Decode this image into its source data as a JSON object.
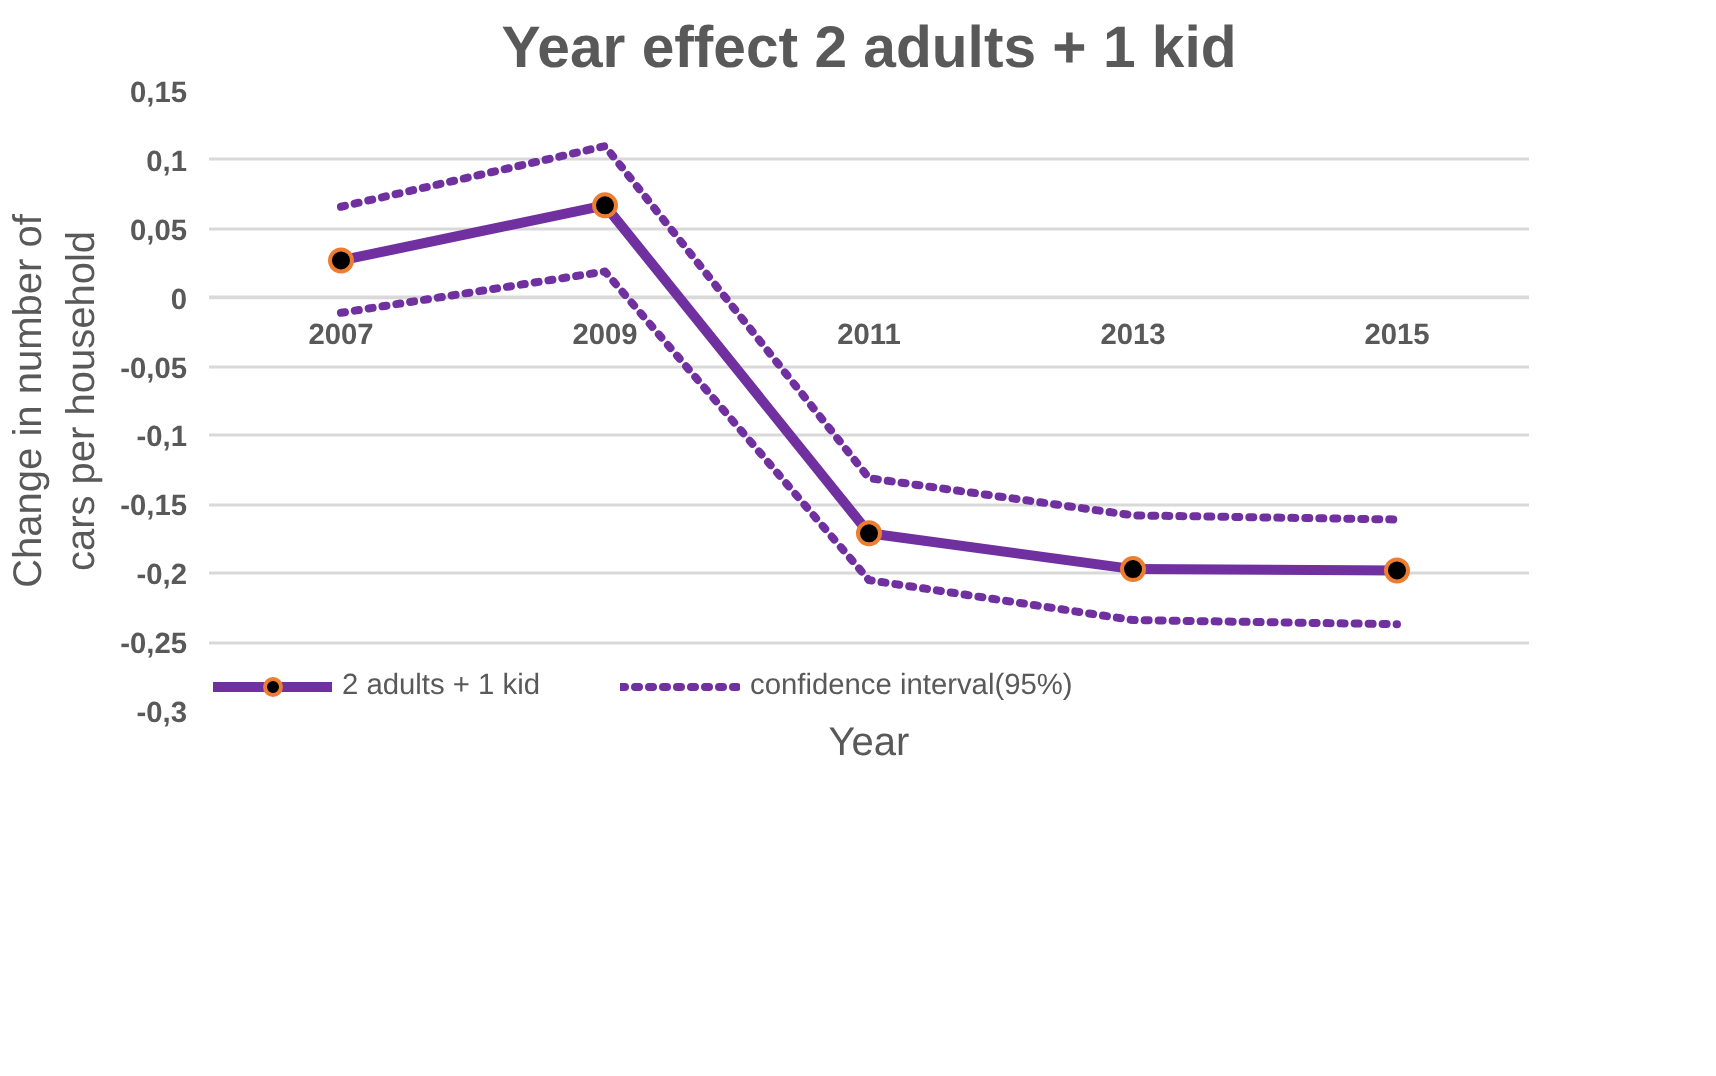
{
  "chart_data": {
    "type": "line",
    "title": "Year effect 2 adults + 1 kid",
    "xlabel": "Year",
    "ylabel": "Change in number of cars per household",
    "categories": [
      "2007",
      "2009",
      "2011",
      "2013",
      "2015"
    ],
    "series": [
      {
        "name": "2 adults + 1 kid",
        "color": "#7030a0",
        "values": [
          0.027,
          0.067,
          -0.171,
          -0.197,
          -0.198
        ],
        "marker": "circle",
        "line_style": "solid"
      },
      {
        "name": "confidence interval(95%)",
        "color": "#7030a0",
        "values": [
          0.066,
          0.11,
          -0.131,
          -0.158,
          -0.161
        ],
        "marker": "none",
        "line_style": "dotted"
      },
      {
        "color": "#7030a0",
        "values": [
          -0.011,
          0.019,
          -0.205,
          -0.234,
          -0.237
        ],
        "marker": "none",
        "line_style": "dotted"
      }
    ],
    "ylim": [
      -0.3,
      0.15
    ],
    "yticks": [
      {
        "value": -0.3,
        "label": "-0,3"
      },
      {
        "value": -0.25,
        "label": "-0,25"
      },
      {
        "value": -0.2,
        "label": "-0,2"
      },
      {
        "value": -0.15,
        "label": "-0,15"
      },
      {
        "value": -0.1,
        "label": "-0,1"
      },
      {
        "value": -0.05,
        "label": "-0,05"
      },
      0,
      {
        "value": 0.05,
        "label": "0,05"
      },
      {
        "value": 0.1,
        "label": "0,1"
      },
      {
        "value": 0.15,
        "label": "0,15"
      }
    ],
    "grid": "y",
    "legend": "bottom left"
  }
}
